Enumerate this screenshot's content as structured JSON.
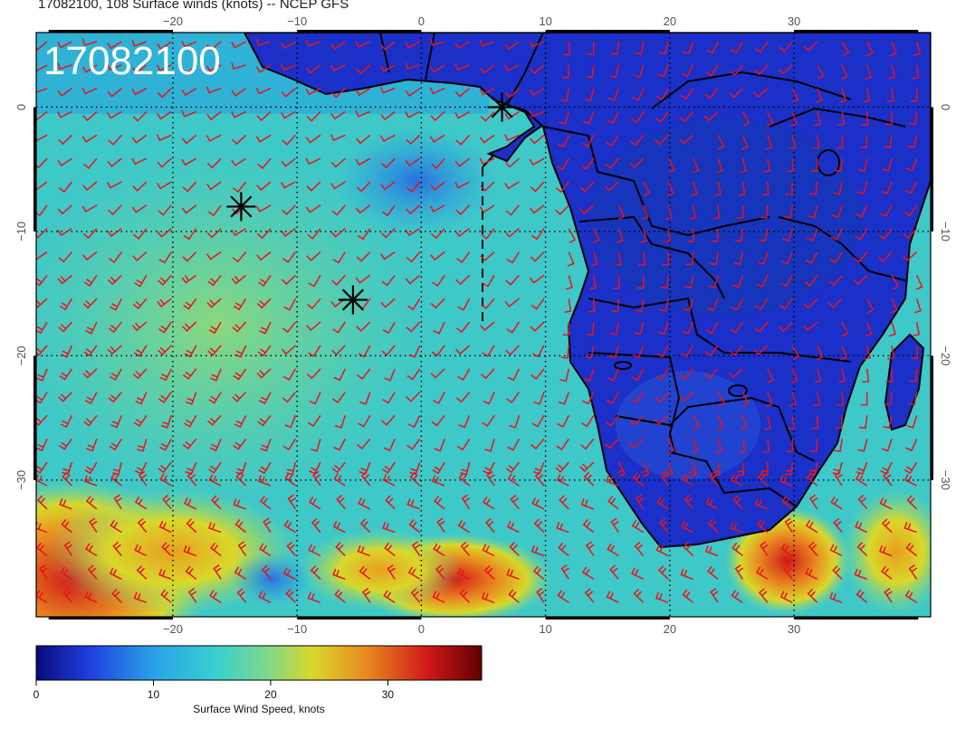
{
  "title": "17082100, 108 Surface winds (knots) -- NCEP GFS",
  "stamp": "17082100",
  "map": {
    "lon_range": [
      -31,
      41
    ],
    "lat_range": [
      -41,
      6
    ],
    "lon_ticks": [
      {
        "value": -20,
        "label": "−20"
      },
      {
        "value": -10,
        "label": "−10"
      },
      {
        "value": 0,
        "label": "0"
      },
      {
        "value": 10,
        "label": "10"
      },
      {
        "value": 20,
        "label": "20"
      },
      {
        "value": 30,
        "label": "30"
      }
    ],
    "lat_ticks": [
      {
        "value": 0,
        "label": "0"
      },
      {
        "value": -10,
        "label": "−10"
      },
      {
        "value": -20,
        "label": "−20"
      },
      {
        "value": -30,
        "label": "−30"
      }
    ],
    "barb_color": "#e8141a",
    "land_color": "#1a30c8",
    "ocean_color": "#35c6cf",
    "storm_markers": [
      {
        "lon": 6.5,
        "lat": 0.0
      },
      {
        "lon": -14.5,
        "lat": -8.0
      },
      {
        "lon": -5.5,
        "lat": -15.5
      }
    ]
  },
  "colorbar": {
    "label": "Surface Wind Speed, knots",
    "ticks": [
      {
        "value": 0,
        "label": "0"
      },
      {
        "value": 10,
        "label": "10"
      },
      {
        "value": 20,
        "label": "20"
      },
      {
        "value": 30,
        "label": "30"
      }
    ],
    "range": [
      0,
      38
    ],
    "colors": [
      "#0a0a7a",
      "#1f3fe0",
      "#2aa0e8",
      "#35d0d0",
      "#7fd88a",
      "#d8d82a",
      "#e88a20",
      "#d01818",
      "#600000"
    ]
  }
}
